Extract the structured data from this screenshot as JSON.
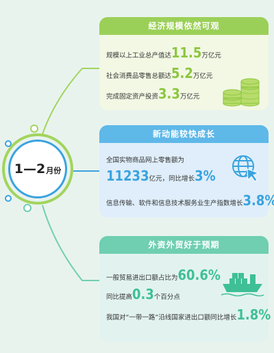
{
  "center": {
    "label_big": "1—2",
    "label_small": "月份"
  },
  "section1": {
    "title": "经济规模依然可观",
    "rows": [
      {
        "pre": "规模以上工业总产值达",
        "num": "11.5",
        "post": "万亿元"
      },
      {
        "pre": "社会消费品零售总额达",
        "num": "5.2",
        "post": "万亿元"
      },
      {
        "pre": "完成固定资产投资",
        "num": "3.3",
        "post": "万亿元"
      }
    ],
    "icon": "coins-stack-icon"
  },
  "section2": {
    "title": "新动能较快成长",
    "line1": "全国实物商品网上零售额为",
    "num1": "11233",
    "mid1": "亿元，同比增长",
    "num2": "3%",
    "line3": "信息传输、软件和信息技术服务业生产指数增长",
    "num3": "3.8%",
    "icon": "globe-cursor-icon"
  },
  "section3": {
    "title": "外资外贸好于预期",
    "line1": "一般贸易进出口额占比为",
    "num1": "60.6%",
    "line2pre": "同比提高",
    "num2": "0.3",
    "line2post": "个百分点",
    "line3": "我国对“一带一路”沿线国家进出口额同比增长",
    "num3": "1.8%",
    "icon": "cargo-ship-icon"
  },
  "colors": {
    "green": "#8cc63f",
    "blue": "#3aa3df",
    "teal": "#3fbf96"
  }
}
